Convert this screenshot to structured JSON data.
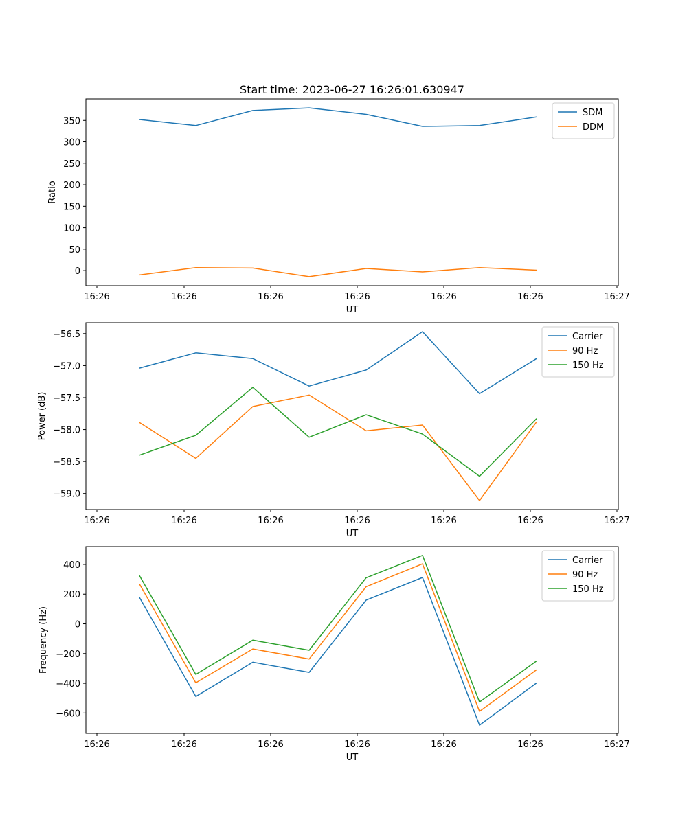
{
  "chart_data": [
    {
      "type": "line",
      "title": "Start time: 2023-06-27 16:26:01.630947",
      "xlabel": "UT",
      "ylabel": "Ratio",
      "x_tick_labels": [
        "16:26",
        "16:26",
        "16:26",
        "16:26",
        "16:26",
        "16:26",
        "16:27"
      ],
      "y_ticks": [
        0,
        50,
        100,
        150,
        200,
        250,
        300,
        350
      ],
      "ylim": [
        -35,
        400
      ],
      "legend_position": "top-right",
      "series": [
        {
          "name": "SDM",
          "color": "#1f77b4",
          "values": [
            352,
            338,
            373,
            379,
            364,
            336,
            338,
            358
          ]
        },
        {
          "name": "DDM",
          "color": "#ff7f0e",
          "values": [
            -10,
            7,
            6,
            -14,
            5,
            -3,
            7,
            1
          ]
        }
      ]
    },
    {
      "type": "line",
      "title": "",
      "xlabel": "UT",
      "ylabel": "Power (dB)",
      "x_tick_labels": [
        "16:26",
        "16:26",
        "16:26",
        "16:26",
        "16:26",
        "16:26",
        "16:27"
      ],
      "y_ticks": [
        -59.0,
        -58.5,
        -58.0,
        -57.5,
        -57.0,
        -56.5
      ],
      "y_tick_labels": [
        "−59.0",
        "−58.5",
        "−58.0",
        "−57.5",
        "−57.0",
        "−56.5"
      ],
      "ylim": [
        -59.25,
        -56.33
      ],
      "legend_position": "top-right",
      "series": [
        {
          "name": "Carrier",
          "color": "#1f77b4",
          "values": [
            -57.04,
            -56.8,
            -56.89,
            -57.32,
            -57.07,
            -56.47,
            -57.44,
            -56.89
          ]
        },
        {
          "name": "90 Hz",
          "color": "#ff7f0e",
          "values": [
            -57.89,
            -58.45,
            -57.64,
            -57.46,
            -58.02,
            -57.93,
            -59.11,
            -57.88
          ]
        },
        {
          "name": "150 Hz",
          "color": "#2ca02c",
          "values": [
            -58.4,
            -58.09,
            -57.34,
            -58.12,
            -57.77,
            -58.07,
            -58.73,
            -57.83
          ]
        }
      ]
    },
    {
      "type": "line",
      "title": "",
      "xlabel": "UT",
      "ylabel": "Frequency (Hz)",
      "x_tick_labels": [
        "16:26",
        "16:26",
        "16:26",
        "16:26",
        "16:26",
        "16:26",
        "16:27"
      ],
      "y_ticks": [
        -600,
        -400,
        -200,
        0,
        200,
        400
      ],
      "y_tick_labels": [
        "−600",
        "−400",
        "−200",
        "0",
        "200",
        "400"
      ],
      "ylim": [
        -737,
        520
      ],
      "legend_position": "top-right",
      "series": [
        {
          "name": "Carrier",
          "color": "#1f77b4",
          "values": [
            178,
            -489,
            -258,
            -326,
            160,
            312,
            -682,
            -398
          ]
        },
        {
          "name": "90 Hz",
          "color": "#ff7f0e",
          "values": [
            268,
            -397,
            -169,
            -237,
            250,
            404,
            -589,
            -309
          ]
        },
        {
          "name": "150 Hz",
          "color": "#2ca02c",
          "values": [
            325,
            -340,
            -110,
            -178,
            310,
            461,
            -526,
            -250
          ]
        }
      ]
    }
  ]
}
